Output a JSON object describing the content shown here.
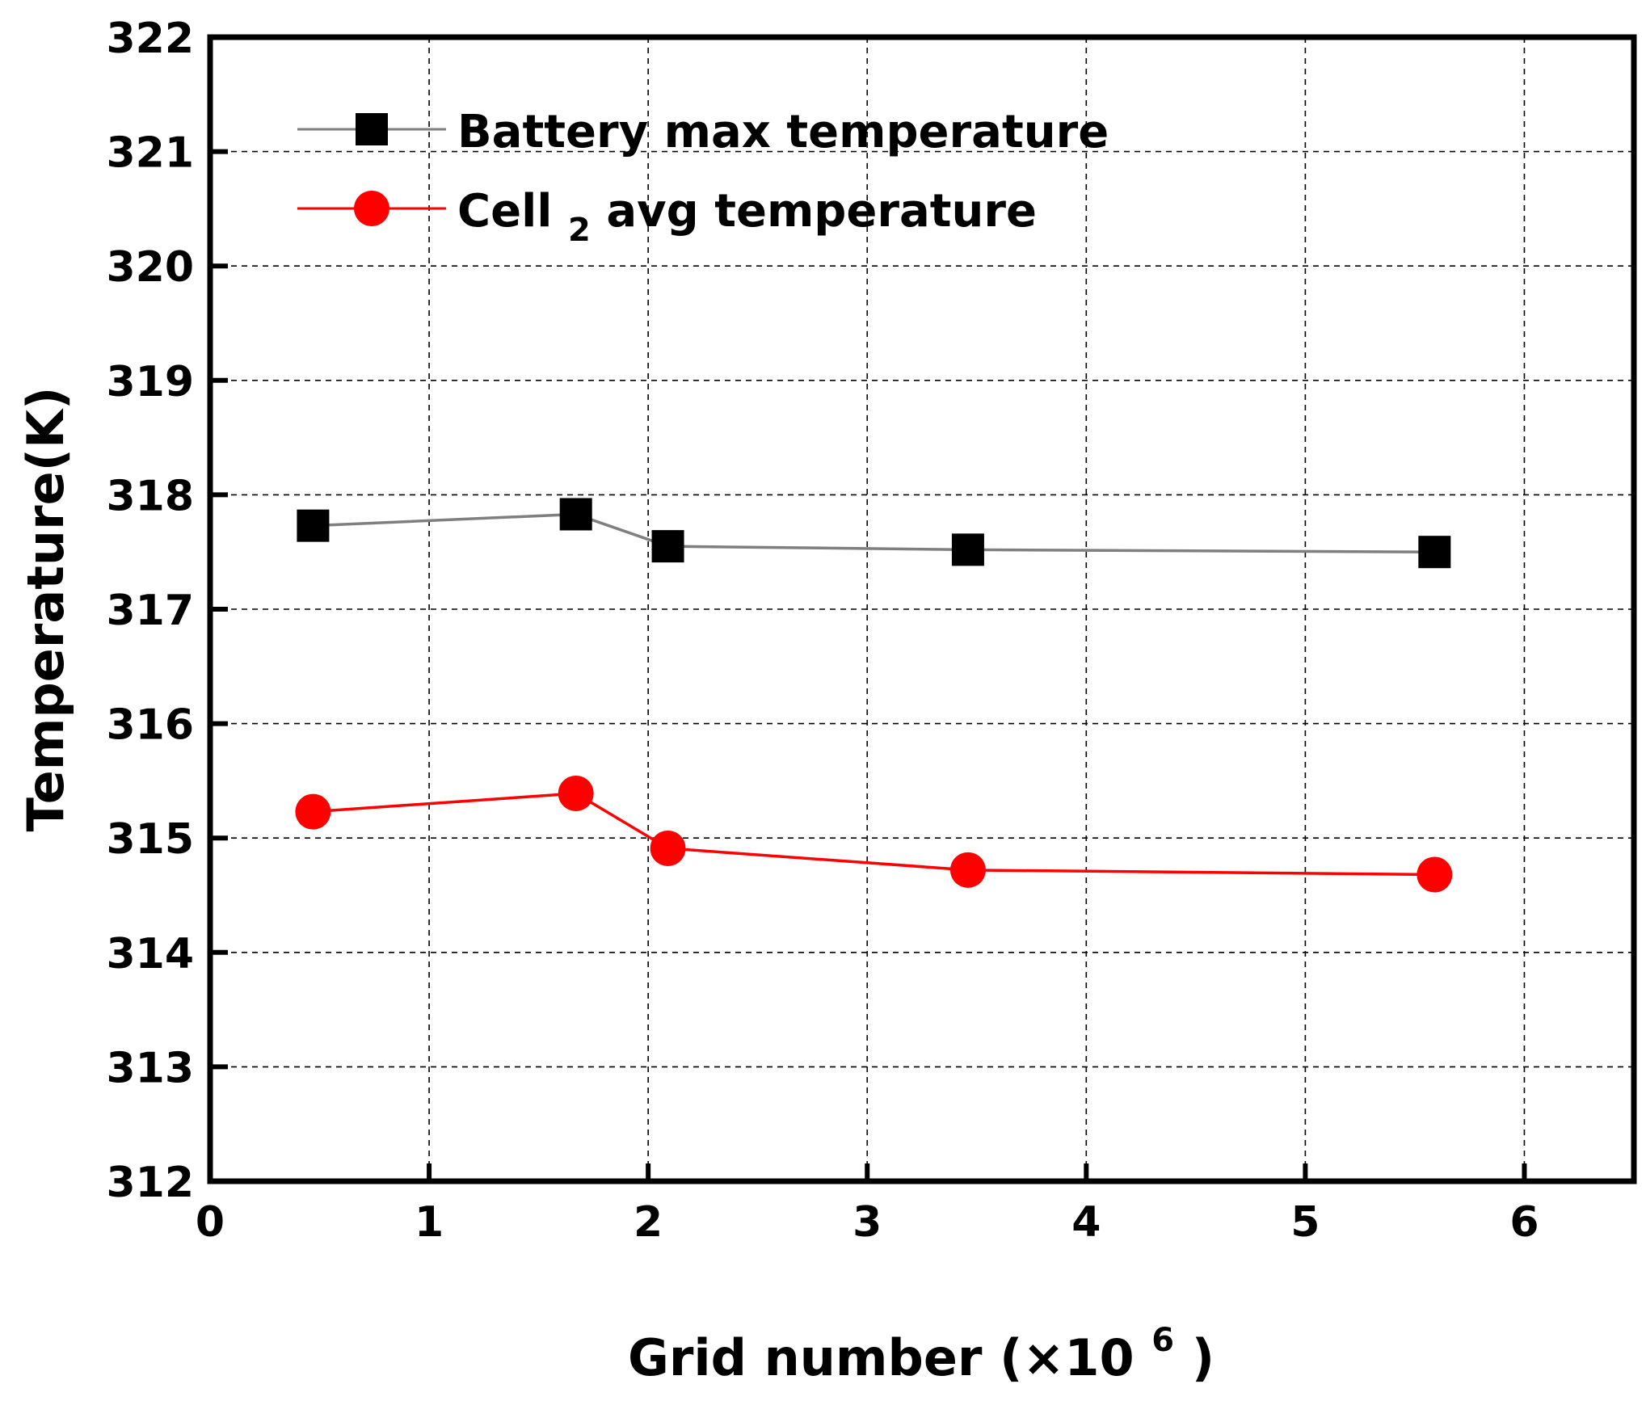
{
  "chart_data": {
    "type": "line",
    "title": "",
    "xlabel": "Grid number",
    "xlabel_multiplier": "(×10",
    "xlabel_exponent": "6",
    "xlabel_close": ")",
    "ylabel": "Temperature(K)",
    "xlim": [
      0,
      6.5
    ],
    "ylim": [
      312,
      322
    ],
    "xticks": [
      0,
      1,
      2,
      3,
      4,
      5,
      6
    ],
    "xtick_labels": [
      "0",
      "1",
      "2",
      "3",
      "4",
      "5",
      "6"
    ],
    "yticks": [
      312,
      313,
      314,
      315,
      316,
      317,
      318,
      319,
      320,
      321,
      322
    ],
    "ytick_labels": [
      "312",
      "313",
      "314",
      "315",
      "316",
      "317",
      "318",
      "319",
      "320",
      "321",
      "322"
    ],
    "grid": true,
    "legend_position": "top-left",
    "series": [
      {
        "name": "Battery max temperature",
        "legend_main": "Battery max temperature",
        "marker": "square",
        "line_color": "#7f7f7f",
        "marker_color": "#000000",
        "x": [
          0.47,
          1.67,
          2.09,
          3.46,
          5.59
        ],
        "values": [
          317.73,
          317.83,
          317.55,
          317.52,
          317.5
        ]
      },
      {
        "name": "Cell2 avg temperature",
        "legend_main": "Cell",
        "legend_sub": "2",
        "legend_rest": " avg temperature",
        "marker": "circle",
        "line_color": "#ff0000",
        "marker_color": "#ff0000",
        "x": [
          0.47,
          1.67,
          2.09,
          3.46,
          5.59
        ],
        "values": [
          315.23,
          315.39,
          314.91,
          314.72,
          314.68
        ]
      }
    ]
  }
}
